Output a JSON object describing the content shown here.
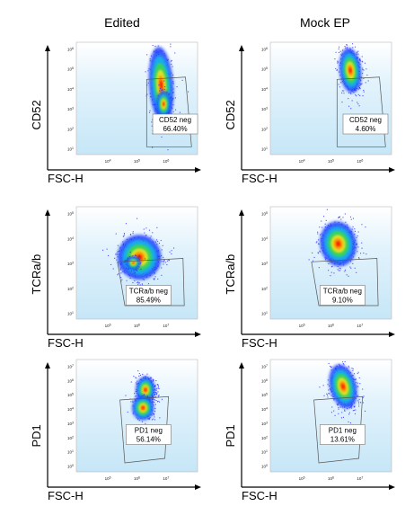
{
  "chart_data": {
    "type": "scatter",
    "subtype": "flow-cytometry-density",
    "columns": [
      "Edited",
      "Mock EP"
    ],
    "rows": [
      {
        "ylabel": "CD52",
        "xlabel": "FSC-H",
        "xticks": [
          "10^4",
          "10^5",
          "10^6"
        ],
        "yticks": [
          "10^1",
          "10^2",
          "10^3",
          "10^4",
          "10^5",
          "10^6"
        ],
        "panels": [
          {
            "column": "Edited",
            "gate": "CD52 neg",
            "percent": "66.40%"
          },
          {
            "column": "Mock EP",
            "gate": "CD52 neg",
            "percent": "4.60%"
          }
        ]
      },
      {
        "ylabel": "TCRa/b",
        "xlabel": "FSC-H",
        "xticks": [
          "10^5",
          "10^6",
          "10^7"
        ],
        "yticks": [
          "10^1",
          "10^2",
          "10^3",
          "10^4",
          "10^5"
        ],
        "panels": [
          {
            "column": "Edited",
            "gate": "TCRa/b neg",
            "percent": "85.49%"
          },
          {
            "column": "Mock EP",
            "gate": "TCRa/b neg",
            "percent": "9.10%"
          }
        ]
      },
      {
        "ylabel": "PD1",
        "xlabel": "FSC-H",
        "xticks": [
          "10^5",
          "10^6",
          "10^7"
        ],
        "yticks": [
          "10^0",
          "10^1",
          "10^2",
          "10^3",
          "10^4",
          "10^5",
          "10^6",
          "10^7"
        ],
        "panels": [
          {
            "column": "Edited",
            "gate": "PD1 neg",
            "percent": "56.14%"
          },
          {
            "column": "Mock EP",
            "gate": "PD1 neg",
            "percent": "13.61%"
          }
        ]
      }
    ],
    "colors": {
      "background": "#cfeaf8",
      "low": "#1a1aff",
      "mid": "#39d353",
      "high": "#ff1f00"
    }
  }
}
